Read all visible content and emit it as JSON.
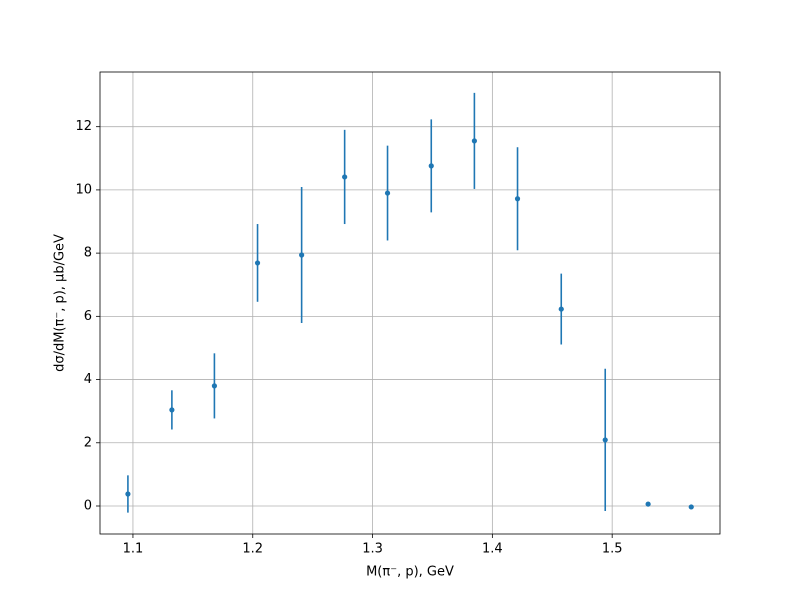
{
  "chart_data": {
    "type": "errorbar",
    "x_label": "M(π⁻, p), GeV",
    "y_label": "dσ/dM(π⁻, p), μb/GeV",
    "x": [
      1.0958,
      1.1325,
      1.168,
      1.204,
      1.2408,
      1.2767,
      1.3125,
      1.349,
      1.385,
      1.421,
      1.4575,
      1.4942,
      1.53,
      1.566
    ],
    "values": [
      0.38,
      3.04,
      3.8,
      7.69,
      7.94,
      10.41,
      9.9,
      10.76,
      11.55,
      9.72,
      6.23,
      2.09,
      0.06,
      -0.03
    ],
    "errors": [
      0.59,
      0.62,
      1.03,
      1.23,
      2.15,
      1.49,
      1.5,
      1.47,
      1.52,
      1.63,
      1.12,
      2.25,
      0,
      0
    ],
    "color": "#1f77b4",
    "xlim": [
      1.0725,
      1.59
    ],
    "xticks": [
      1.1,
      1.2,
      1.3,
      1.4,
      1.5
    ],
    "ylim": [
      -0.886,
      13.73
    ],
    "yticks": [
      0,
      2,
      4,
      6,
      8,
      10,
      12
    ],
    "grid": true
  }
}
